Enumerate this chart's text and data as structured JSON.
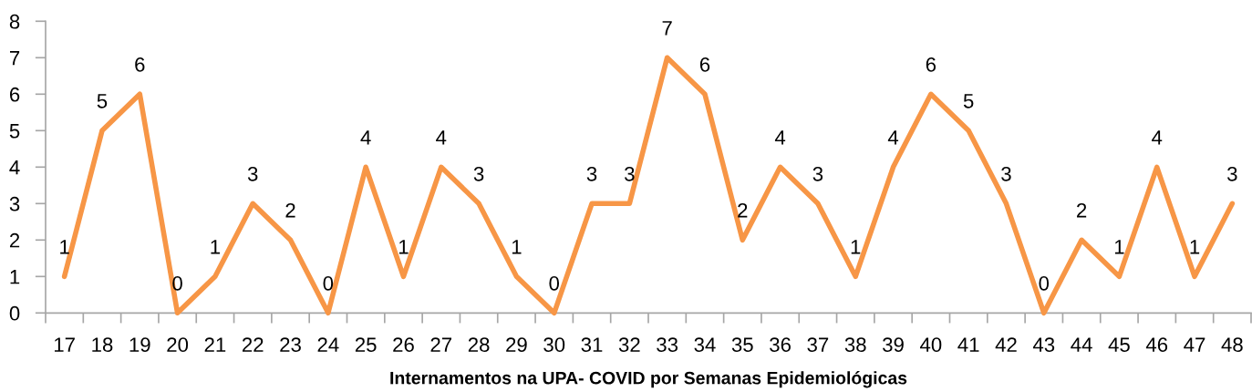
{
  "chart_data": {
    "type": "line",
    "xlabel": "Internamentos na UPA- COVID por Semanas Epidemiológicas",
    "categories": [
      "17",
      "18",
      "19",
      "20",
      "21",
      "22",
      "23",
      "24",
      "25",
      "26",
      "27",
      "28",
      "29",
      "30",
      "31",
      "32",
      "33",
      "34",
      "35",
      "36",
      "37",
      "38",
      "39",
      "40",
      "41",
      "42",
      "43",
      "44",
      "45",
      "46",
      "47",
      "48"
    ],
    "series": [
      {
        "color": "#f79646",
        "values": [
          1,
          5,
          6,
          0,
          1,
          3,
          2,
          0,
          4,
          1,
          4,
          3,
          1,
          0,
          3,
          3,
          7,
          6,
          2,
          4,
          3,
          1,
          4,
          6,
          5,
          3,
          0,
          2,
          1,
          4,
          1,
          3
        ]
      }
    ],
    "ylim": [
      0,
      8
    ],
    "yticks": [
      0,
      1,
      2,
      3,
      4,
      5,
      6,
      7,
      8
    ],
    "data_labels": true,
    "line_style": "solid"
  }
}
